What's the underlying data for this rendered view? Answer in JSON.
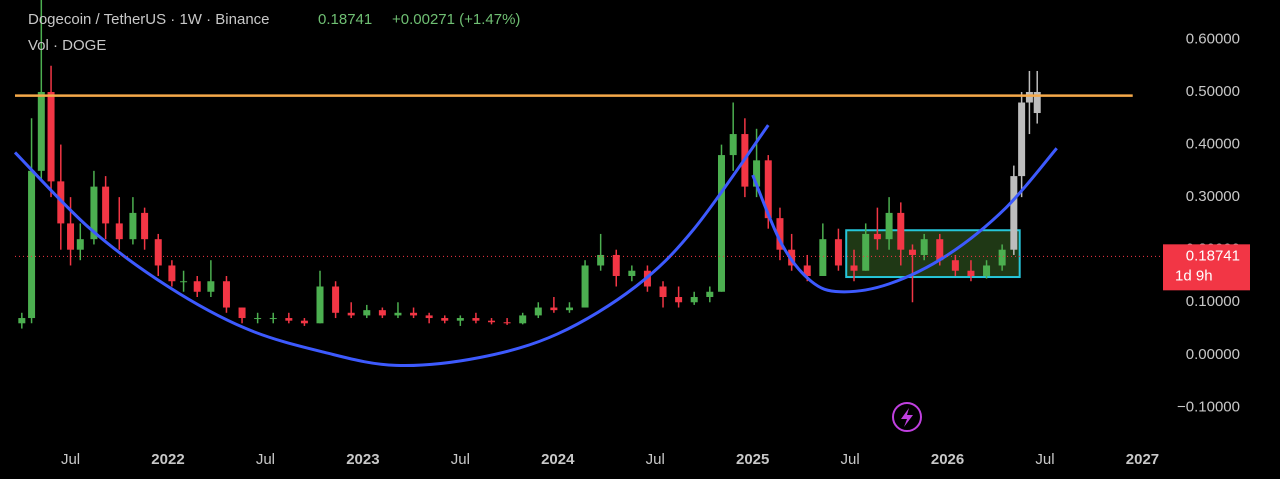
{
  "chart_data": {
    "type": "candlestick",
    "title": "Dogecoin / TetherUS · 1W · Binance",
    "last_price": 0.18741,
    "change": "+0.00271 (+1.47%)",
    "subtitle": "Vol · DOGE",
    "countdown": "1d 9h",
    "xlim": [
      2021.215,
      2027.09
    ],
    "ylim": [
      -0.162,
      0.675
    ],
    "xticks": [
      {
        "value": 2021.5,
        "label": "Jul"
      },
      2022,
      {
        "value": 2022.5,
        "label": "Jul"
      },
      2023,
      {
        "value": 2023.5,
        "label": "Jul"
      },
      2024,
      {
        "value": 2024.5,
        "label": "Jul"
      },
      2025,
      {
        "value": 2025.5,
        "label": "Jul"
      },
      2026,
      {
        "value": 2026.5,
        "label": "Jul"
      },
      2027
    ],
    "yticks": [
      {
        "value": 0.6,
        "label": "0.60000"
      },
      {
        "value": 0.5,
        "label": "0.50000"
      },
      {
        "value": 0.4,
        "label": "0.40000"
      },
      {
        "value": 0.3,
        "label": "0.30000"
      },
      {
        "value": 0.2,
        "label": "0.20000"
      },
      {
        "value": 0.1,
        "label": "0.10000"
      },
      {
        "value": 0,
        "label": "0.00000"
      },
      {
        "value": -0.1,
        "label": "−0.10000"
      }
    ],
    "up_color": "#4caf50",
    "down_color": "#f23645",
    "candles": {
      "x": [
        2021.25,
        2021.3,
        2021.35,
        2021.4,
        2021.45,
        2021.5,
        2021.55,
        2021.62,
        2021.68,
        2021.75,
        2021.82,
        2021.88,
        2021.95,
        2022.02,
        2022.08,
        2022.15,
        2022.22,
        2022.3,
        2022.38,
        2022.46,
        2022.54,
        2022.62,
        2022.7,
        2022.78,
        2022.86,
        2022.94,
        2023.02,
        2023.1,
        2023.18,
        2023.26,
        2023.34,
        2023.42,
        2023.5,
        2023.58,
        2023.66,
        2023.74,
        2023.82,
        2023.9,
        2023.98,
        2024.06,
        2024.14,
        2024.22,
        2024.3,
        2024.38,
        2024.46,
        2024.54,
        2024.62,
        2024.7,
        2024.78,
        2024.84,
        2024.9,
        2024.96,
        2025.02,
        2025.08,
        2025.14,
        2025.2,
        2025.28,
        2025.36,
        2025.44,
        2025.52,
        2025.58,
        2025.64,
        2025.7,
        2025.76,
        2025.82,
        2025.88,
        2025.96,
        2026.04,
        2026.12,
        2026.2,
        2026.28
      ],
      "open": [
        0.06,
        0.07,
        0.35,
        0.5,
        0.33,
        0.25,
        0.2,
        0.22,
        0.32,
        0.25,
        0.22,
        0.27,
        0.22,
        0.17,
        0.14,
        0.14,
        0.12,
        0.14,
        0.09,
        0.07,
        0.07,
        0.07,
        0.065,
        0.06,
        0.13,
        0.08,
        0.075,
        0.085,
        0.075,
        0.08,
        0.075,
        0.07,
        0.065,
        0.07,
        0.065,
        0.062,
        0.06,
        0.075,
        0.09,
        0.085,
        0.09,
        0.17,
        0.19,
        0.15,
        0.16,
        0.13,
        0.11,
        0.1,
        0.11,
        0.12,
        0.38,
        0.42,
        0.32,
        0.37,
        0.26,
        0.2,
        0.17,
        0.15,
        0.22,
        0.17,
        0.16,
        0.23,
        0.22,
        0.27,
        0.2,
        0.19,
        0.22,
        0.18,
        0.16,
        0.15,
        0.17
      ],
      "high": [
        0.08,
        0.45,
        0.68,
        0.55,
        0.4,
        0.3,
        0.25,
        0.35,
        0.34,
        0.3,
        0.3,
        0.28,
        0.23,
        0.18,
        0.16,
        0.15,
        0.18,
        0.15,
        0.09,
        0.08,
        0.08,
        0.08,
        0.07,
        0.16,
        0.14,
        0.1,
        0.095,
        0.09,
        0.1,
        0.09,
        0.08,
        0.075,
        0.075,
        0.08,
        0.07,
        0.07,
        0.08,
        0.1,
        0.11,
        0.1,
        0.18,
        0.23,
        0.2,
        0.17,
        0.17,
        0.14,
        0.13,
        0.12,
        0.13,
        0.4,
        0.48,
        0.45,
        0.43,
        0.38,
        0.28,
        0.23,
        0.19,
        0.25,
        0.24,
        0.2,
        0.25,
        0.28,
        0.3,
        0.29,
        0.21,
        0.23,
        0.23,
        0.19,
        0.18,
        0.18,
        0.21
      ],
      "low": [
        0.05,
        0.06,
        0.33,
        0.3,
        0.2,
        0.17,
        0.18,
        0.21,
        0.22,
        0.2,
        0.21,
        0.2,
        0.15,
        0.13,
        0.12,
        0.11,
        0.11,
        0.08,
        0.06,
        0.06,
        0.06,
        0.06,
        0.055,
        0.06,
        0.07,
        0.07,
        0.07,
        0.07,
        0.07,
        0.07,
        0.06,
        0.06,
        0.055,
        0.06,
        0.058,
        0.057,
        0.058,
        0.07,
        0.08,
        0.08,
        0.09,
        0.16,
        0.13,
        0.14,
        0.12,
        0.09,
        0.09,
        0.095,
        0.1,
        0.12,
        0.35,
        0.3,
        0.3,
        0.24,
        0.18,
        0.16,
        0.14,
        0.15,
        0.16,
        0.14,
        0.16,
        0.2,
        0.2,
        0.17,
        0.1,
        0.18,
        0.17,
        0.15,
        0.14,
        0.145,
        0.16
      ],
      "close": [
        0.07,
        0.35,
        0.5,
        0.33,
        0.25,
        0.2,
        0.22,
        0.32,
        0.25,
        0.22,
        0.27,
        0.22,
        0.17,
        0.14,
        0.14,
        0.12,
        0.14,
        0.09,
        0.07,
        0.07,
        0.07,
        0.065,
        0.06,
        0.13,
        0.08,
        0.075,
        0.085,
        0.075,
        0.08,
        0.075,
        0.07,
        0.065,
        0.07,
        0.065,
        0.062,
        0.06,
        0.075,
        0.09,
        0.085,
        0.09,
        0.17,
        0.19,
        0.15,
        0.16,
        0.13,
        0.11,
        0.1,
        0.11,
        0.12,
        0.38,
        0.42,
        0.32,
        0.37,
        0.26,
        0.2,
        0.17,
        0.15,
        0.22,
        0.17,
        0.16,
        0.23,
        0.22,
        0.27,
        0.2,
        0.19,
        0.22,
        0.18,
        0.16,
        0.15,
        0.17,
        0.2
      ]
    },
    "projected_candles": {
      "color": "#bdbdbd",
      "x": [
        2026.34,
        2026.38,
        2026.42,
        2026.46
      ],
      "open": [
        0.2,
        0.34,
        0.48,
        0.5
      ],
      "high": [
        0.36,
        0.5,
        0.54,
        0.54
      ],
      "low": [
        0.19,
        0.3,
        0.42,
        0.44
      ],
      "close": [
        0.34,
        0.48,
        0.5,
        0.46
      ]
    },
    "resistance": {
      "value": 0.493,
      "x": [
        2021.215,
        2026.95
      ],
      "color": "#f5a94a"
    },
    "curves": [
      {
        "color": "#3d5afe",
        "x": [
          2021.215,
          2021.6,
          2022.0,
          2022.4,
          2022.8,
          2023.17,
          2023.6,
          2024.0,
          2024.4,
          2024.7,
          2025.08
        ],
        "values": [
          0.385,
          0.24,
          0.13,
          0.05,
          0.005,
          -0.02,
          -0.005,
          0.04,
          0.13,
          0.24,
          0.437
        ]
      },
      {
        "color": "#3d5afe",
        "x": [
          2025.0,
          2025.15,
          2025.3,
          2025.45,
          2025.7,
          2026.0,
          2026.3,
          2026.56
        ],
        "values": [
          0.342,
          0.21,
          0.14,
          0.12,
          0.135,
          0.19,
          0.28,
          0.393
        ]
      }
    ],
    "range_box": {
      "x": [
        2025.48,
        2026.37
      ],
      "y": [
        0.148,
        0.237
      ],
      "color": "#26c6da"
    }
  }
}
